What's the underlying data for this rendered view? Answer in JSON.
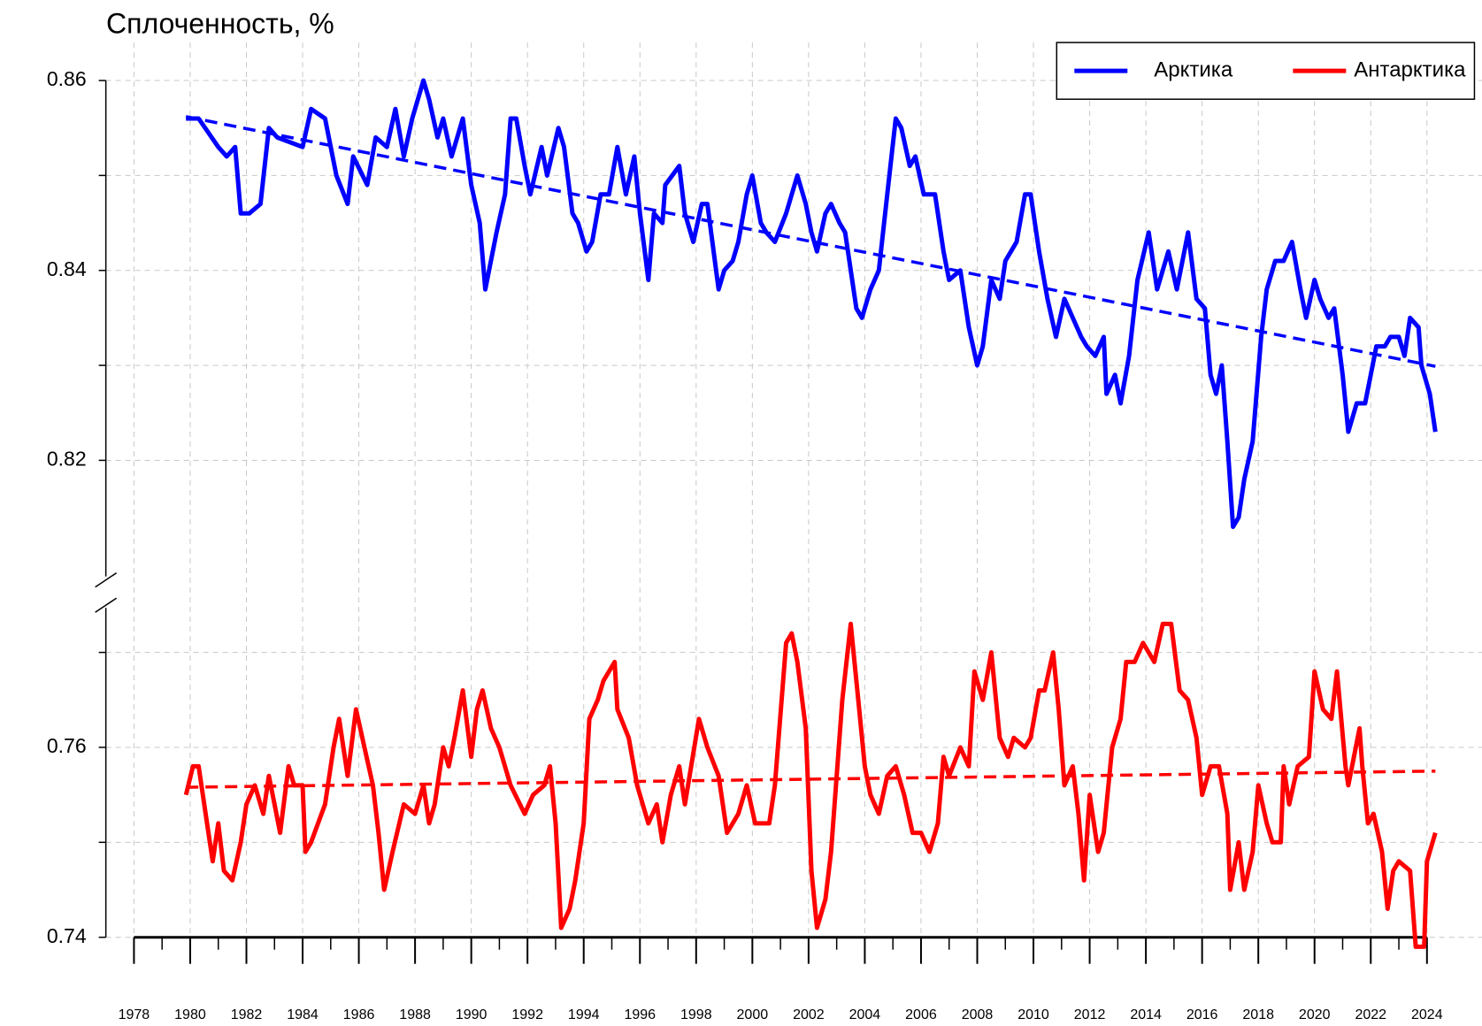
{
  "chart_data": {
    "type": "line",
    "title": "Сплоченность, %",
    "xlim": [
      1977,
      2026
    ],
    "ylim": [
      0.74,
      0.864
    ],
    "axis_break": [
      0.7705,
      0.8115
    ],
    "xticks": [
      1978,
      1980,
      1982,
      1984,
      1986,
      1988,
      1990,
      1992,
      1994,
      1996,
      1998,
      2000,
      2002,
      2004,
      2006,
      2008,
      2010,
      2012,
      2014,
      2016,
      2018,
      2020,
      2022,
      2024
    ],
    "yticks": [
      0.74,
      0.76,
      0.82,
      0.84,
      0.86
    ],
    "minor_yticks": [
      0.75,
      0.77,
      0.83,
      0.85
    ],
    "grid": true,
    "legend": "top-right",
    "series": [
      {
        "name": "Арктика",
        "color": "#0000ff",
        "x": [
          1979.85,
          1980.3,
          1981.0,
          1981.3,
          1981.6,
          1981.8,
          1982.1,
          1982.5,
          1982.8,
          1983.1,
          1984.0,
          1984.3,
          1984.8,
          1985.2,
          1985.6,
          1985.8,
          1986.3,
          1986.6,
          1987.0,
          1987.3,
          1987.6,
          1987.9,
          1988.3,
          1988.5,
          1988.8,
          1989.0,
          1989.3,
          1989.7,
          1990.0,
          1990.3,
          1990.5,
          1990.9,
          1991.2,
          1991.4,
          1991.6,
          1991.9,
          1992.1,
          1992.5,
          1992.7,
          1993.1,
          1993.3,
          1993.6,
          1993.8,
          1994.1,
          1994.3,
          1994.6,
          1994.9,
          1995.2,
          1995.5,
          1995.8,
          1996.0,
          1996.3,
          1996.5,
          1996.8,
          1996.9,
          1997.4,
          1997.6,
          1997.9,
          1998.2,
          1998.4,
          1998.8,
          1999.0,
          1999.3,
          1999.5,
          1999.8,
          2000.0,
          2000.3,
          2000.5,
          2000.8,
          2001.2,
          2001.6,
          2001.9,
          2002.1,
          2002.3,
          2002.6,
          2002.8,
          2003.1,
          2003.3,
          2003.7,
          2003.9,
          2004.2,
          2004.5,
          2004.8,
          2005.1,
          2005.3,
          2005.6,
          2005.8,
          2006.1,
          2006.5,
          2006.8,
          2007.0,
          2007.4,
          2007.7,
          2008.0,
          2008.2,
          2008.5,
          2008.8,
          2009.0,
          2009.4,
          2009.7,
          2009.9,
          2010.2,
          2010.5,
          2010.8,
          2011.1,
          2011.4,
          2011.7,
          2011.9,
          2012.2,
          2012.5,
          2012.6,
          2012.9,
          2013.1,
          2013.4,
          2013.7,
          2014.1,
          2014.4,
          2014.8,
          2015.1,
          2015.5,
          2015.8,
          2016.1,
          2016.3,
          2016.5,
          2016.7,
          2016.9,
          2017.1,
          2017.3,
          2017.5,
          2017.8,
          2018.1,
          2018.3,
          2018.6,
          2018.9,
          2019.2,
          2019.5,
          2019.7,
          2020.0,
          2020.2,
          2020.5,
          2020.7,
          2021.0,
          2021.2,
          2021.5,
          2021.8,
          2022.2,
          2022.5,
          2022.7,
          2023.0,
          2023.2,
          2023.4,
          2023.7,
          2023.8,
          2024.1,
          2024.3
        ],
        "values": [
          0.856,
          0.856,
          0.853,
          0.852,
          0.853,
          0.846,
          0.846,
          0.847,
          0.855,
          0.854,
          0.853,
          0.857,
          0.856,
          0.85,
          0.847,
          0.852,
          0.849,
          0.854,
          0.853,
          0.857,
          0.852,
          0.856,
          0.86,
          0.858,
          0.854,
          0.856,
          0.852,
          0.856,
          0.849,
          0.845,
          0.838,
          0.844,
          0.848,
          0.856,
          0.856,
          0.851,
          0.848,
          0.853,
          0.85,
          0.855,
          0.853,
          0.846,
          0.845,
          0.842,
          0.843,
          0.848,
          0.848,
          0.853,
          0.848,
          0.852,
          0.846,
          0.839,
          0.846,
          0.845,
          0.849,
          0.851,
          0.846,
          0.843,
          0.847,
          0.847,
          0.838,
          0.84,
          0.841,
          0.843,
          0.848,
          0.85,
          0.845,
          0.844,
          0.843,
          0.846,
          0.85,
          0.847,
          0.844,
          0.842,
          0.846,
          0.847,
          0.845,
          0.844,
          0.836,
          0.835,
          0.838,
          0.84,
          0.848,
          0.856,
          0.855,
          0.851,
          0.852,
          0.848,
          0.848,
          0.842,
          0.839,
          0.84,
          0.834,
          0.83,
          0.832,
          0.839,
          0.837,
          0.841,
          0.843,
          0.848,
          0.848,
          0.842,
          0.837,
          0.833,
          0.837,
          0.835,
          0.833,
          0.832,
          0.831,
          0.833,
          0.827,
          0.829,
          0.826,
          0.831,
          0.839,
          0.844,
          0.838,
          0.842,
          0.838,
          0.844,
          0.837,
          0.836,
          0.829,
          0.827,
          0.83,
          0.822,
          0.813,
          0.814,
          0.818,
          0.822,
          0.833,
          0.838,
          0.841,
          0.841,
          0.843,
          0.838,
          0.835,
          0.839,
          0.837,
          0.835,
          0.836,
          0.829,
          0.823,
          0.826,
          0.826,
          0.832,
          0.832,
          0.833,
          0.833,
          0.831,
          0.835,
          0.834,
          0.83,
          0.827,
          0.823
        ],
        "trend": {
          "x": [
            1979.85,
            2024.3
          ],
          "values": [
            0.8562,
            0.8299
          ]
        }
      },
      {
        "name": "Антарктика",
        "color": "#ff0000",
        "x": [
          1979.85,
          1980.1,
          1980.3,
          1980.6,
          1980.8,
          1981.0,
          1981.2,
          1981.5,
          1981.8,
          1982.0,
          1982.3,
          1982.6,
          1982.8,
          1983.0,
          1983.2,
          1983.5,
          1983.7,
          1984.0,
          1984.1,
          1984.3,
          1984.8,
          1985.1,
          1985.3,
          1985.6,
          1985.9,
          1986.2,
          1986.5,
          1986.7,
          1986.9,
          1987.2,
          1987.6,
          1988.0,
          1988.3,
          1988.5,
          1988.7,
          1989.0,
          1989.2,
          1989.4,
          1989.7,
          1990.0,
          1990.2,
          1990.4,
          1990.7,
          1991.0,
          1991.4,
          1991.9,
          1992.2,
          1992.6,
          1992.8,
          1993.0,
          1993.2,
          1993.5,
          1993.7,
          1994.0,
          1994.2,
          1994.5,
          1994.7,
          1995.1,
          1995.2,
          1995.6,
          1995.9,
          1996.3,
          1996.6,
          1996.8,
          1997.1,
          1997.4,
          1997.6,
          1998.1,
          1998.4,
          1998.8,
          1999.1,
          1999.5,
          1999.8,
          2000.1,
          2000.6,
          2000.8,
          2001.2,
          2001.4,
          2001.6,
          2001.9,
          2002.1,
          2002.3,
          2002.6,
          2002.8,
          2003.2,
          2003.5,
          2003.8,
          2004.0,
          2004.2,
          2004.5,
          2004.8,
          2005.1,
          2005.4,
          2005.7,
          2006.0,
          2006.3,
          2006.6,
          2006.8,
          2007.0,
          2007.4,
          2007.7,
          2007.9,
          2008.2,
          2008.5,
          2008.8,
          2009.1,
          2009.3,
          2009.7,
          2009.9,
          2010.2,
          2010.4,
          2010.7,
          2010.9,
          2011.1,
          2011.4,
          2011.6,
          2011.8,
          2012.0,
          2012.3,
          2012.5,
          2012.8,
          2013.1,
          2013.3,
          2013.6,
          2013.9,
          2014.3,
          2014.6,
          2014.9,
          2015.2,
          2015.5,
          2015.8,
          2016.0,
          2016.3,
          2016.6,
          2016.9,
          2017.0,
          2017.3,
          2017.5,
          2017.8,
          2018.0,
          2018.3,
          2018.5,
          2018.8,
          2018.9,
          2019.1,
          2019.4,
          2019.8,
          2020.0,
          2020.3,
          2020.6,
          2020.8,
          2021.1,
          2021.2,
          2021.6,
          2021.7,
          2021.9,
          2022.1,
          2022.4,
          2022.6,
          2022.8,
          2023.0,
          2023.4,
          2023.6,
          2023.9,
          2024.0,
          2024.3
        ],
        "values": [
          0.755,
          0.758,
          0.758,
          0.752,
          0.748,
          0.752,
          0.747,
          0.746,
          0.75,
          0.754,
          0.756,
          0.753,
          0.757,
          0.754,
          0.751,
          0.758,
          0.756,
          0.756,
          0.749,
          0.75,
          0.754,
          0.76,
          0.763,
          0.757,
          0.764,
          0.76,
          0.756,
          0.751,
          0.745,
          0.749,
          0.754,
          0.753,
          0.756,
          0.752,
          0.754,
          0.76,
          0.758,
          0.761,
          0.766,
          0.759,
          0.764,
          0.766,
          0.762,
          0.76,
          0.756,
          0.753,
          0.755,
          0.756,
          0.758,
          0.752,
          0.741,
          0.743,
          0.746,
          0.752,
          0.763,
          0.765,
          0.767,
          0.769,
          0.764,
          0.761,
          0.756,
          0.752,
          0.754,
          0.75,
          0.755,
          0.758,
          0.754,
          0.763,
          0.76,
          0.757,
          0.751,
          0.753,
          0.756,
          0.752,
          0.752,
          0.756,
          0.771,
          0.772,
          0.769,
          0.762,
          0.747,
          0.741,
          0.744,
          0.749,
          0.765,
          0.773,
          0.764,
          0.758,
          0.755,
          0.753,
          0.757,
          0.758,
          0.755,
          0.751,
          0.751,
          0.749,
          0.752,
          0.759,
          0.757,
          0.76,
          0.758,
          0.768,
          0.765,
          0.77,
          0.761,
          0.759,
          0.761,
          0.76,
          0.761,
          0.766,
          0.766,
          0.77,
          0.764,
          0.756,
          0.758,
          0.753,
          0.746,
          0.755,
          0.749,
          0.751,
          0.76,
          0.763,
          0.769,
          0.769,
          0.771,
          0.769,
          0.773,
          0.773,
          0.766,
          0.765,
          0.761,
          0.755,
          0.758,
          0.758,
          0.753,
          0.745,
          0.75,
          0.745,
          0.749,
          0.756,
          0.752,
          0.75,
          0.75,
          0.758,
          0.754,
          0.758,
          0.759,
          0.768,
          0.764,
          0.763,
          0.768,
          0.758,
          0.756,
          0.762,
          0.758,
          0.752,
          0.753,
          0.749,
          0.743,
          0.747,
          0.748,
          0.747,
          0.739,
          0.739,
          0.748,
          0.751
        ],
        "trend": {
          "x": [
            1979.85,
            2024.3
          ],
          "values": [
            0.7558,
            0.7575
          ]
        }
      }
    ]
  }
}
